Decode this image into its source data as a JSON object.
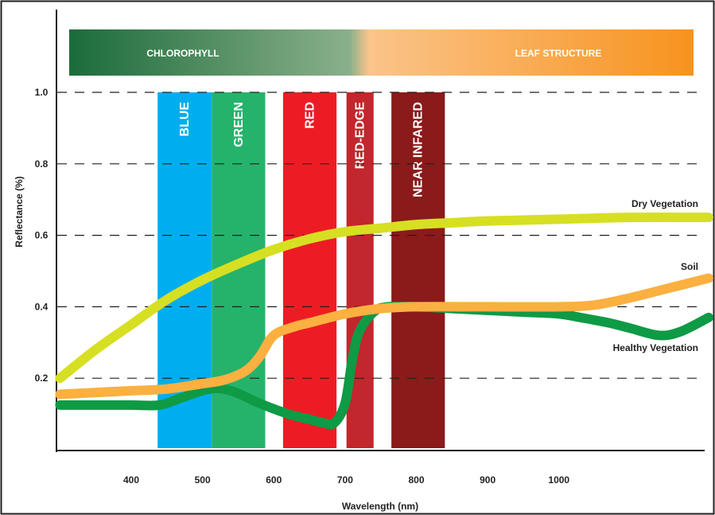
{
  "chart_data": {
    "type": "line",
    "xlabel": "Wavelength (nm)",
    "ylabel": "Reflectance (%)",
    "x_ticks": [
      400,
      500,
      600,
      700,
      800,
      900,
      1000
    ],
    "x_tick_labels": [
      "400",
      "500",
      "600",
      "700",
      "800",
      "900",
      "1000"
    ],
    "y_ticks": [
      0.2,
      0.4,
      0.6,
      0.8,
      1.0
    ],
    "y_tick_labels": [
      "0.2",
      "0.4",
      "0.6",
      "0.8",
      "1.0"
    ],
    "xlim": [
      300,
      1210
    ],
    "ylim": [
      0,
      1.1
    ],
    "grid": "horizontal-dashed",
    "header_bar": {
      "left_label": "CHLOROPHYLL",
      "right_label": "LEAF STRUCTURE",
      "left_color": "#1b6b3a",
      "right_color": "#f7931e"
    },
    "bands": [
      {
        "label": "BLUE",
        "x_start": 437,
        "x_end": 513,
        "color": "#00aeef"
      },
      {
        "label": "GREEN",
        "x_start": 513,
        "x_end": 588,
        "color": "#25b36b"
      },
      {
        "label": "RED",
        "x_start": 613,
        "x_end": 688,
        "color": "#ed1c24"
      },
      {
        "label": "RED-EDGE",
        "x_start": 702,
        "x_end": 740,
        "color": "#c1272d"
      },
      {
        "label": "NEAR INFARED",
        "x_start": 765,
        "x_end": 840,
        "color": "#8b1a1a"
      }
    ],
    "series": [
      {
        "name": "Dry Vegetation",
        "color": "#d7df23",
        "points": [
          [
            300,
            0.2
          ],
          [
            350,
            0.28
          ],
          [
            400,
            0.35
          ],
          [
            450,
            0.42
          ],
          [
            500,
            0.475
          ],
          [
            550,
            0.52
          ],
          [
            600,
            0.56
          ],
          [
            650,
            0.59
          ],
          [
            700,
            0.61
          ],
          [
            750,
            0.62
          ],
          [
            800,
            0.63
          ],
          [
            850,
            0.635
          ],
          [
            900,
            0.64
          ],
          [
            1000,
            0.645
          ],
          [
            1100,
            0.65
          ],
          [
            1210,
            0.65
          ]
        ]
      },
      {
        "name": "Soil",
        "color": "#fbb040",
        "points": [
          [
            300,
            0.155
          ],
          [
            350,
            0.16
          ],
          [
            400,
            0.165
          ],
          [
            450,
            0.17
          ],
          [
            500,
            0.185
          ],
          [
            530,
            0.195
          ],
          [
            560,
            0.22
          ],
          [
            580,
            0.26
          ],
          [
            600,
            0.32
          ],
          [
            630,
            0.345
          ],
          [
            650,
            0.355
          ],
          [
            700,
            0.38
          ],
          [
            750,
            0.395
          ],
          [
            800,
            0.4
          ],
          [
            900,
            0.4
          ],
          [
            1000,
            0.4
          ],
          [
            1050,
            0.405
          ],
          [
            1100,
            0.425
          ],
          [
            1150,
            0.45
          ],
          [
            1210,
            0.48
          ]
        ]
      },
      {
        "name": "Healthy Vegetation",
        "color": "#0f9a45",
        "points": [
          [
            300,
            0.125
          ],
          [
            350,
            0.125
          ],
          [
            400,
            0.125
          ],
          [
            440,
            0.125
          ],
          [
            470,
            0.145
          ],
          [
            510,
            0.17
          ],
          [
            540,
            0.165
          ],
          [
            580,
            0.13
          ],
          [
            620,
            0.1
          ],
          [
            650,
            0.085
          ],
          [
            670,
            0.075
          ],
          [
            685,
            0.075
          ],
          [
            700,
            0.13
          ],
          [
            710,
            0.25
          ],
          [
            720,
            0.33
          ],
          [
            740,
            0.385
          ],
          [
            760,
            0.4
          ],
          [
            800,
            0.4
          ],
          [
            850,
            0.395
          ],
          [
            900,
            0.39
          ],
          [
            950,
            0.385
          ],
          [
            1000,
            0.38
          ],
          [
            1030,
            0.37
          ],
          [
            1070,
            0.355
          ],
          [
            1100,
            0.34
          ],
          [
            1140,
            0.32
          ],
          [
            1170,
            0.33
          ],
          [
            1210,
            0.37
          ]
        ]
      }
    ]
  }
}
